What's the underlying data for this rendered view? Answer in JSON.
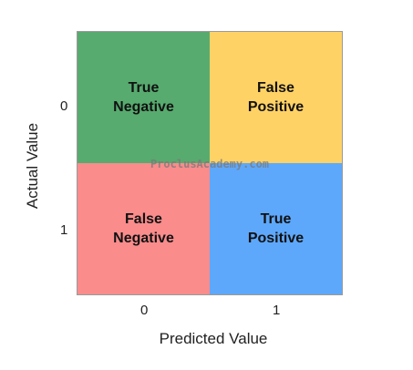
{
  "chart_data": {
    "type": "heatmap",
    "title": "",
    "xlabel": "Predicted Value",
    "ylabel": "Actual Value",
    "x_ticks": [
      "0",
      "1"
    ],
    "y_ticks": [
      "0",
      "1"
    ],
    "cells": [
      {
        "row": "0",
        "col": "0",
        "line1": "True",
        "line2": "Negative",
        "color": "#57ab6f"
      },
      {
        "row": "0",
        "col": "1",
        "line1": "False",
        "line2": "Positive",
        "color": "#ffd266"
      },
      {
        "row": "1",
        "col": "0",
        "line1": "False",
        "line2": "Negative",
        "color": "#fa8c8c"
      },
      {
        "row": "1",
        "col": "1",
        "line1": "True",
        "line2": "Positive",
        "color": "#5ea8fb"
      }
    ],
    "watermark": "ProclusAcademy.com"
  }
}
